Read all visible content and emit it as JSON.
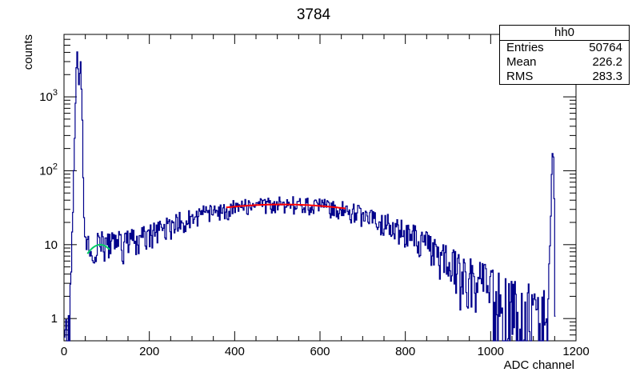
{
  "chart_data": {
    "type": "histogram",
    "title": "3784",
    "xlabel": "ADC channel",
    "ylabel": "counts",
    "xlim": [
      0,
      1200
    ],
    "ylim": [
      0.5,
      7000
    ],
    "yscale": "log",
    "grid": false,
    "x_ticks": [
      0,
      200,
      400,
      600,
      800,
      1000,
      1200
    ],
    "x_tick_labels": [
      "0",
      "200",
      "400",
      "600",
      "800",
      "1000",
      "1200"
    ],
    "y_tick_labels": [
      {
        "value": 1,
        "base": "1",
        "exp": ""
      },
      {
        "value": 10,
        "base": "10",
        "exp": ""
      },
      {
        "value": 100,
        "base": "10",
        "exp": "2"
      },
      {
        "value": 1000,
        "base": "10",
        "exp": "3"
      }
    ],
    "histogram_color": "#00008b",
    "profile_points": [
      {
        "x": 0,
        "y": 0.6
      },
      {
        "x": 10,
        "y": 0.8
      },
      {
        "x": 15,
        "y": 2
      },
      {
        "x": 20,
        "y": 30
      },
      {
        "x": 25,
        "y": 500
      },
      {
        "x": 28,
        "y": 2500
      },
      {
        "x": 30,
        "y": 4000
      },
      {
        "x": 34,
        "y": 1500
      },
      {
        "x": 38,
        "y": 3000
      },
      {
        "x": 42,
        "y": 500
      },
      {
        "x": 45,
        "y": 40
      },
      {
        "x": 50,
        "y": 12
      },
      {
        "x": 60,
        "y": 10
      },
      {
        "x": 80,
        "y": 11
      },
      {
        "x": 120,
        "y": 10
      },
      {
        "x": 160,
        "y": 11
      },
      {
        "x": 200,
        "y": 14
      },
      {
        "x": 250,
        "y": 18
      },
      {
        "x": 300,
        "y": 24
      },
      {
        "x": 350,
        "y": 28
      },
      {
        "x": 400,
        "y": 31
      },
      {
        "x": 450,
        "y": 34
      },
      {
        "x": 500,
        "y": 36
      },
      {
        "x": 550,
        "y": 35
      },
      {
        "x": 600,
        "y": 33
      },
      {
        "x": 650,
        "y": 30
      },
      {
        "x": 700,
        "y": 25
      },
      {
        "x": 750,
        "y": 20
      },
      {
        "x": 800,
        "y": 15
      },
      {
        "x": 850,
        "y": 10
      },
      {
        "x": 900,
        "y": 6
      },
      {
        "x": 950,
        "y": 4
      },
      {
        "x": 1000,
        "y": 2.5
      },
      {
        "x": 1050,
        "y": 1.8
      },
      {
        "x": 1100,
        "y": 1.5
      },
      {
        "x": 1130,
        "y": 1.5
      },
      {
        "x": 1138,
        "y": 10
      },
      {
        "x": 1142,
        "y": 100
      },
      {
        "x": 1145,
        "y": 250
      },
      {
        "x": 1148,
        "y": 40
      },
      {
        "x": 1150,
        "y": 0.6
      }
    ],
    "fits": [
      {
        "color": "#ff0000",
        "x": [
          380,
          660
        ],
        "mean": 510,
        "sigma": 300,
        "peak": 35
      },
      {
        "color": "#00cc66",
        "x": [
          55,
          110
        ],
        "mean": 85,
        "sigma": 40,
        "peak": 10
      }
    ],
    "stats": {
      "name": "hh0",
      "rows": [
        {
          "label": "Entries",
          "value": "50764"
        },
        {
          "label": "Mean",
          "value": "226.2"
        },
        {
          "label": "RMS",
          "value": "283.3"
        }
      ]
    }
  }
}
